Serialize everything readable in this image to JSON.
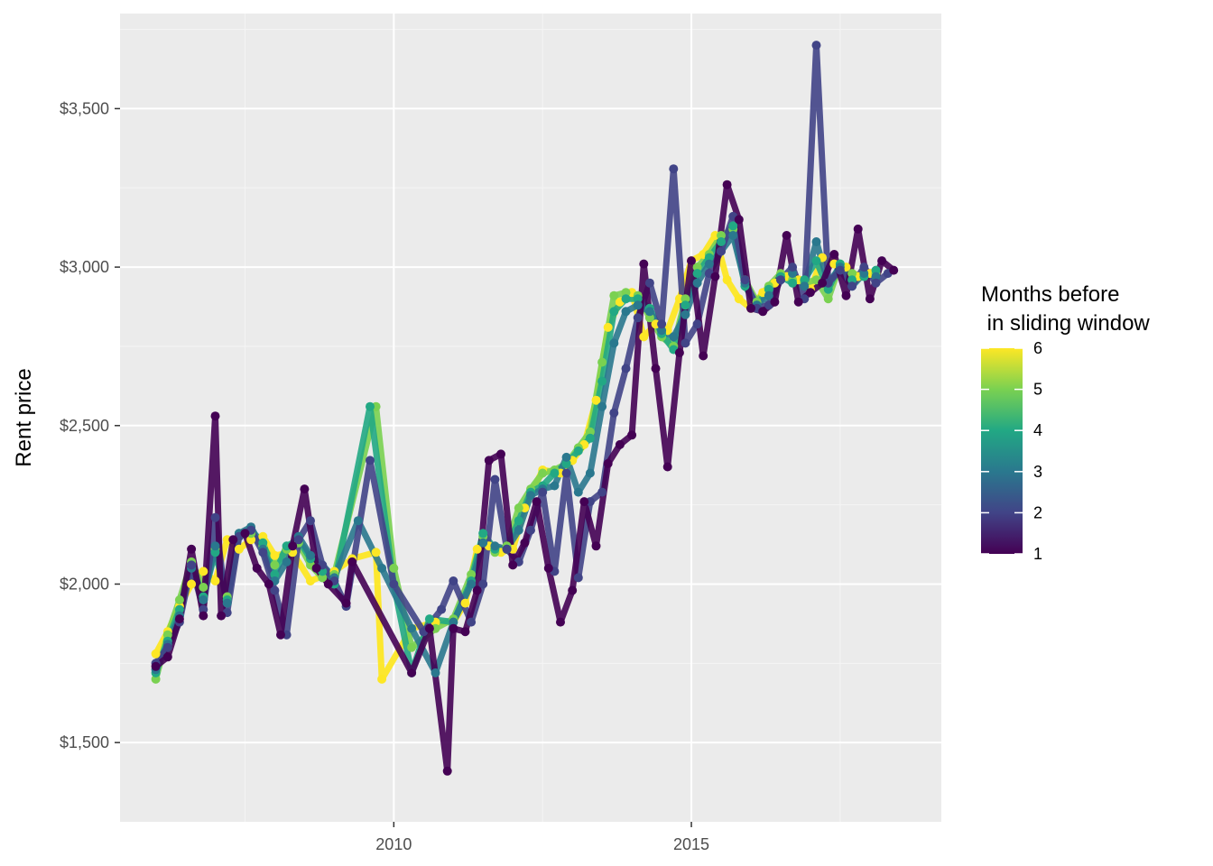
{
  "chart_data": {
    "type": "line",
    "title": "",
    "xlabel": "",
    "ylabel": "Rent price",
    "xlim": [
      2005.4,
      2019.2
    ],
    "ylim": [
      1250,
      3800
    ],
    "x_ticks": [
      2010,
      2015
    ],
    "x_tick_labels": [
      "2010",
      "2015"
    ],
    "y_ticks": [
      1500,
      2000,
      2500,
      3000,
      3500
    ],
    "y_tick_labels": [
      "$1,500",
      "$2,000",
      "$2,500",
      "$3,000",
      "$3,500"
    ],
    "grid": true,
    "legend": {
      "title": "Months before\n in sliding window",
      "title_lines": [
        "Months before",
        " in sliding window"
      ],
      "position": "right",
      "type": "colorbar",
      "range": [
        1,
        6
      ],
      "ticks": [
        1,
        2,
        3,
        4,
        5,
        6
      ],
      "tick_labels": [
        "1",
        "2",
        "3",
        "4",
        "5",
        "6"
      ]
    },
    "colors": {
      "panel_background": "#EBEBEB",
      "grid_major": "#FFFFFF",
      "grid_minor": "#F5F5F5",
      "viridis": [
        "#440154",
        "#414487",
        "#2A788E",
        "#22A884",
        "#7AD151",
        "#FDE725"
      ]
    },
    "series": [
      {
        "window": 1,
        "color": "#440154",
        "x": [
          2006.0,
          2006.2,
          2006.4,
          2006.6,
          2006.8,
          2007.0,
          2007.1,
          2007.3,
          2007.5,
          2007.7,
          2007.9,
          2008.1,
          2008.3,
          2008.5,
          2008.7,
          2008.9,
          2009.2,
          2009.3,
          2010.3,
          2010.6,
          2010.9,
          2011.0,
          2011.2,
          2011.4,
          2011.6,
          2011.8,
          2012.0,
          2012.2,
          2012.4,
          2012.6,
          2012.8,
          2013.0,
          2013.2,
          2013.4,
          2013.6,
          2013.8,
          2014.0,
          2014.2,
          2014.4,
          2014.6,
          2014.8,
          2015.0,
          2015.2,
          2015.4,
          2015.6,
          2015.8,
          2016.0,
          2016.2,
          2016.4,
          2016.6,
          2016.8,
          2017.0,
          2017.2,
          2017.4,
          2017.6,
          2017.8,
          2018.0,
          2018.2,
          2018.4
        ],
        "y": [
          1740,
          1770,
          1890,
          2110,
          1900,
          2530,
          1900,
          2140,
          2160,
          2050,
          2000,
          1840,
          2120,
          2300,
          2050,
          2000,
          1940,
          2070,
          1720,
          1860,
          1410,
          1860,
          1850,
          1980,
          2390,
          2410,
          2060,
          2130,
          2260,
          2050,
          1880,
          1980,
          2260,
          2120,
          2380,
          2440,
          2470,
          3010,
          2680,
          2370,
          2730,
          3020,
          2720,
          2970,
          3260,
          3150,
          2870,
          2860,
          2890,
          3100,
          2890,
          2920,
          2950,
          3040,
          2910,
          3120,
          2900,
          3020,
          2990
        ]
      },
      {
        "window": 2,
        "color": "#414487",
        "x": [
          2006.0,
          2006.2,
          2006.4,
          2006.6,
          2006.8,
          2007.0,
          2007.2,
          2007.4,
          2007.6,
          2007.8,
          2008.0,
          2008.2,
          2008.4,
          2008.6,
          2008.8,
          2009.0,
          2009.2,
          2009.6,
          2010.0,
          2010.5,
          2010.8,
          2011.0,
          2011.3,
          2011.5,
          2011.7,
          2011.9,
          2012.1,
          2012.3,
          2012.5,
          2012.7,
          2012.9,
          2013.1,
          2013.3,
          2013.5,
          2013.7,
          2013.9,
          2014.1,
          2014.3,
          2014.5,
          2014.7,
          2014.9,
          2015.1,
          2015.3,
          2015.5,
          2015.7,
          2015.9,
          2016.1,
          2016.3,
          2016.5,
          2016.7,
          2016.9,
          2017.1,
          2017.3,
          2017.5,
          2017.7,
          2017.9,
          2018.1,
          2018.3
        ],
        "y": [
          1750,
          1800,
          1880,
          2060,
          1920,
          2210,
          1910,
          2150,
          2170,
          2100,
          1980,
          1840,
          2140,
          2200,
          2060,
          2010,
          1930,
          2390,
          2000,
          1850,
          1920,
          2010,
          1880,
          2000,
          2330,
          2110,
          2070,
          2170,
          2290,
          2040,
          2350,
          2020,
          2260,
          2290,
          2540,
          2680,
          2840,
          2950,
          2820,
          3310,
          2760,
          2820,
          2980,
          3050,
          3160,
          2960,
          2870,
          2880,
          2960,
          3000,
          2900,
          3700,
          2950,
          2990,
          2940,
          3000,
          2950,
          2980
        ]
      },
      {
        "window": 3,
        "color": "#2A788E",
        "x": [
          2006.0,
          2006.2,
          2006.4,
          2006.6,
          2006.8,
          2007.0,
          2007.2,
          2007.4,
          2007.6,
          2007.8,
          2008.0,
          2008.2,
          2008.4,
          2008.6,
          2008.8,
          2009.0,
          2009.4,
          2009.8,
          2010.3,
          2010.7,
          2011.0,
          2011.3,
          2011.5,
          2011.7,
          2011.9,
          2012.1,
          2012.3,
          2012.5,
          2012.7,
          2012.9,
          2013.1,
          2013.3,
          2013.5,
          2013.7,
          2013.9,
          2014.1,
          2014.3,
          2014.5,
          2014.7,
          2014.9,
          2015.1,
          2015.3,
          2015.5,
          2015.7,
          2015.9,
          2016.1,
          2016.3,
          2016.5,
          2016.7,
          2016.9,
          2017.1,
          2017.3,
          2017.5,
          2017.7,
          2017.9,
          2018.1
        ],
        "y": [
          1730,
          1810,
          1900,
          2050,
          1950,
          2120,
          1940,
          2160,
          2180,
          2110,
          2010,
          2070,
          2150,
          2090,
          2060,
          2020,
          2200,
          2050,
          1860,
          1720,
          1880,
          2000,
          2130,
          2120,
          2110,
          2170,
          2280,
          2300,
          2310,
          2400,
          2290,
          2350,
          2560,
          2760,
          2860,
          2880,
          2860,
          2800,
          2780,
          2850,
          2950,
          3010,
          3050,
          3100,
          2950,
          2880,
          2910,
          2960,
          2980,
          2940,
          3080,
          2950,
          3000,
          2940,
          2980,
          2970
        ]
      },
      {
        "window": 4,
        "color": "#22A884",
        "x": [
          2006.0,
          2006.2,
          2006.4,
          2006.6,
          2006.8,
          2007.0,
          2007.2,
          2007.4,
          2007.6,
          2007.8,
          2008.0,
          2008.2,
          2008.4,
          2008.6,
          2008.8,
          2009.0,
          2009.6,
          2010.0,
          2010.3,
          2010.6,
          2011.0,
          2011.3,
          2011.5,
          2011.7,
          2011.9,
          2012.1,
          2012.3,
          2012.5,
          2012.7,
          2012.9,
          2013.1,
          2013.3,
          2013.5,
          2013.7,
          2013.9,
          2014.1,
          2014.3,
          2014.5,
          2014.7,
          2014.9,
          2015.1,
          2015.3,
          2015.5,
          2015.7,
          2015.9,
          2016.1,
          2016.3,
          2016.5,
          2016.7,
          2016.9,
          2017.1,
          2017.3,
          2017.5,
          2017.7,
          2017.9,
          2018.1
        ],
        "y": [
          1720,
          1820,
          1920,
          2060,
          1960,
          2100,
          1950,
          2160,
          2170,
          2130,
          2030,
          2120,
          2140,
          2080,
          2040,
          2000,
          2560,
          2000,
          1720,
          1890,
          1880,
          2010,
          2160,
          2110,
          2110,
          2200,
          2290,
          2310,
          2350,
          2380,
          2420,
          2460,
          2640,
          2860,
          2900,
          2900,
          2870,
          2790,
          2740,
          2880,
          2980,
          3030,
          3080,
          3130,
          2940,
          2880,
          2930,
          2970,
          2950,
          2960,
          3020,
          2930,
          3010,
          2960,
          2970,
          2990
        ]
      },
      {
        "window": 5,
        "color": "#7AD151",
        "x": [
          2006.0,
          2006.2,
          2006.4,
          2006.6,
          2006.8,
          2007.0,
          2007.2,
          2007.4,
          2007.6,
          2007.8,
          2008.0,
          2008.2,
          2008.4,
          2008.6,
          2008.8,
          2009.0,
          2009.7,
          2010.0,
          2010.3,
          2010.7,
          2011.0,
          2011.3,
          2011.5,
          2011.7,
          2011.9,
          2012.1,
          2012.3,
          2012.5,
          2012.7,
          2012.9,
          2013.1,
          2013.3,
          2013.5,
          2013.7,
          2013.9,
          2014.1,
          2014.3,
          2014.5,
          2014.7,
          2014.9,
          2015.1,
          2015.3,
          2015.5,
          2015.7,
          2015.9,
          2016.1,
          2016.3,
          2016.5,
          2016.7,
          2016.9,
          2017.1,
          2017.3,
          2017.5,
          2017.7,
          2017.9,
          2018.1
        ],
        "y": [
          1700,
          1840,
          1950,
          2070,
          1990,
          2110,
          1960,
          2150,
          2160,
          2120,
          2060,
          2110,
          2130,
          2060,
          2020,
          2030,
          2560,
          2050,
          1800,
          1860,
          1890,
          2030,
          2150,
          2100,
          2120,
          2240,
          2300,
          2350,
          2360,
          2380,
          2430,
          2480,
          2700,
          2910,
          2920,
          2910,
          2840,
          2780,
          2750,
          2900,
          3000,
          3040,
          3100,
          3120,
          2960,
          2890,
          2940,
          2980,
          2960,
          2950,
          2960,
          2900,
          3010,
          2980,
          2970,
          2980
        ]
      },
      {
        "window": 6,
        "color": "#FDE725",
        "x": [
          2006.0,
          2006.2,
          2006.4,
          2006.6,
          2006.8,
          2007.0,
          2007.2,
          2007.4,
          2007.6,
          2007.8,
          2008.0,
          2008.3,
          2008.6,
          2009.0,
          2009.3,
          2009.7,
          2009.8,
          2010.3,
          2010.7,
          2011.0,
          2011.2,
          2011.4,
          2011.6,
          2011.8,
          2012.0,
          2012.2,
          2012.5,
          2012.8,
          2013.0,
          2013.2,
          2013.4,
          2013.6,
          2013.8,
          2014.0,
          2014.2,
          2014.4,
          2014.6,
          2014.8,
          2015.0,
          2015.2,
          2015.4,
          2015.6,
          2015.8,
          2016.0,
          2016.2,
          2016.4,
          2016.6,
          2016.8,
          2017.0,
          2017.2,
          2017.4,
          2017.6,
          2017.8,
          2018.0
        ],
        "y": [
          1780,
          1850,
          1930,
          2000,
          2040,
          2010,
          2140,
          2110,
          2140,
          2150,
          2090,
          2100,
          2010,
          2040,
          2080,
          2100,
          1700,
          1860,
          1880,
          1880,
          1940,
          2110,
          2120,
          2100,
          2110,
          2240,
          2360,
          2350,
          2390,
          2440,
          2580,
          2810,
          2890,
          2920,
          2780,
          2820,
          2800,
          2900,
          3020,
          3040,
          3100,
          2960,
          2900,
          2870,
          2920,
          2950,
          2970,
          2960,
          2930,
          3030,
          3010,
          3000,
          2970,
          2980
        ]
      }
    ]
  }
}
